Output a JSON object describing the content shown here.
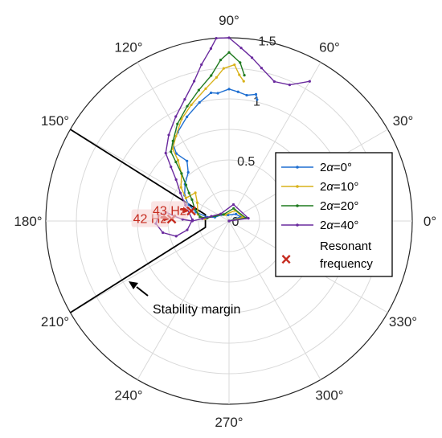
{
  "chart_data": {
    "type": "polar_line",
    "r_ticks": [
      0,
      0.5,
      1,
      1.5
    ],
    "r_tick_labels": [
      "0",
      "0.5",
      "1",
      "1.5"
    ],
    "rlim": [
      0,
      1.5
    ],
    "theta_ticks": [
      0,
      30,
      60,
      90,
      120,
      150,
      180,
      210,
      240,
      270,
      300,
      330
    ],
    "theta_tick_labels": [
      "0°",
      "30°",
      "60°",
      "90°",
      "120°",
      "150°",
      "180°",
      "210°",
      "240°",
      "270°",
      "300°",
      "330°"
    ],
    "grid": true,
    "legend_position": "right",
    "series": [
      {
        "name": "2α=0°",
        "label_parts": [
          "2",
          "α",
          "=0°"
        ],
        "color": "#1f6fd1",
        "points": [
          [
            0.0,
            0
          ],
          [
            0.1,
            20
          ],
          [
            0.08,
            45
          ],
          [
            0.05,
            100
          ],
          [
            0.08,
            140
          ],
          [
            0.12,
            165
          ],
          [
            0.18,
            170
          ],
          [
            0.28,
            165
          ],
          [
            0.36,
            158
          ],
          [
            0.42,
            150
          ],
          [
            0.47,
            140
          ],
          [
            0.52,
            130
          ],
          [
            0.6,
            125
          ],
          [
            0.7,
            128
          ],
          [
            0.78,
            126
          ],
          [
            0.84,
            120
          ],
          [
            0.92,
            112
          ],
          [
            1.0,
            104
          ],
          [
            1.06,
            98
          ],
          [
            1.05,
            95
          ],
          [
            1.08,
            90
          ],
          [
            1.06,
            86
          ],
          [
            1.04,
            82
          ],
          [
            1.06,
            78
          ],
          [
            1.02,
            77
          ]
        ]
      },
      {
        "name": "2α=10°",
        "label_parts": [
          "2",
          "α",
          "=10°"
        ],
        "color": "#d9b21a",
        "points": [
          [
            0.0,
            0
          ],
          [
            0.12,
            15
          ],
          [
            0.1,
            60
          ],
          [
            0.06,
            120
          ],
          [
            0.1,
            150
          ],
          [
            0.15,
            165
          ],
          [
            0.2,
            175
          ],
          [
            0.26,
            168
          ],
          [
            0.3,
            150
          ],
          [
            0.36,
            140
          ],
          [
            0.4,
            152
          ],
          [
            0.48,
            145
          ],
          [
            0.55,
            135
          ],
          [
            0.65,
            130
          ],
          [
            0.75,
            128
          ],
          [
            0.82,
            122
          ],
          [
            0.92,
            115
          ],
          [
            1.0,
            108
          ],
          [
            1.1,
            100
          ],
          [
            1.18,
            95
          ],
          [
            1.25,
            92
          ],
          [
            1.28,
            88
          ],
          [
            1.2,
            86
          ],
          [
            1.15,
            84
          ]
        ]
      },
      {
        "name": "2α=20°",
        "label_parts": [
          "2",
          "α",
          "=20°"
        ],
        "color": "#1f7a1f",
        "points": [
          [
            0.0,
            0
          ],
          [
            0.14,
            10
          ],
          [
            0.11,
            70
          ],
          [
            0.07,
            130
          ],
          [
            0.12,
            160
          ],
          [
            0.18,
            172
          ],
          [
            0.24,
            172
          ],
          [
            0.3,
            160
          ],
          [
            0.35,
            150
          ],
          [
            0.4,
            145
          ],
          [
            0.46,
            140
          ],
          [
            0.55,
            135
          ],
          [
            0.65,
            132
          ],
          [
            0.74,
            130
          ],
          [
            0.8,
            125
          ],
          [
            0.9,
            118
          ],
          [
            1.0,
            110
          ],
          [
            1.1,
            103
          ],
          [
            1.2,
            97
          ],
          [
            1.32,
            93
          ],
          [
            1.38,
            90
          ],
          [
            1.3,
            86
          ],
          [
            1.2,
            84
          ]
        ]
      },
      {
        "name": "2α=40°",
        "label_parts": [
          "2",
          "α",
          "=40°"
        ],
        "color": "#6a2a9e",
        "points": [
          [
            0.0,
            0
          ],
          [
            0.16,
            8
          ],
          [
            0.14,
            75
          ],
          [
            0.09,
            140
          ],
          [
            0.15,
            165
          ],
          [
            0.22,
            175
          ],
          [
            0.3,
            180
          ],
          [
            0.38,
            178
          ],
          [
            0.45,
            175
          ],
          [
            0.52,
            172
          ],
          [
            0.58,
            176
          ],
          [
            0.6,
            182
          ],
          [
            0.55,
            190
          ],
          [
            0.45,
            196
          ],
          [
            0.35,
            192
          ],
          [
            0.3,
            178
          ],
          [
            0.38,
            160
          ],
          [
            0.46,
            150
          ],
          [
            0.55,
            142
          ],
          [
            0.65,
            137
          ],
          [
            0.76,
            133
          ],
          [
            0.86,
            125
          ],
          [
            0.96,
            117
          ],
          [
            1.06,
            110
          ],
          [
            1.18,
            104
          ],
          [
            1.3,
            100
          ],
          [
            1.42,
            96
          ],
          [
            1.5,
            94
          ],
          [
            1.5,
            90
          ],
          [
            1.42,
            86
          ],
          [
            1.35,
            82
          ],
          [
            1.28,
            78
          ],
          [
            1.2,
            72
          ],
          [
            1.22,
            66
          ],
          [
            1.32,
            60
          ]
        ]
      }
    ],
    "resonant_points": [
      {
        "label": "42 Hz",
        "r": 0.47,
        "theta": 178
      },
      {
        "label": "43 Hz",
        "r": 0.32,
        "theta": 165
      }
    ],
    "stability_margin": {
      "points": [
        [
          1.5,
          150
        ],
        [
          0.2,
          165
        ],
        [
          0.2,
          195
        ],
        [
          1.5,
          210
        ]
      ],
      "label": "Stability margin"
    },
    "legend_extra": {
      "marker": "×",
      "line1": "Resonant",
      "line2": "frequency"
    }
  }
}
